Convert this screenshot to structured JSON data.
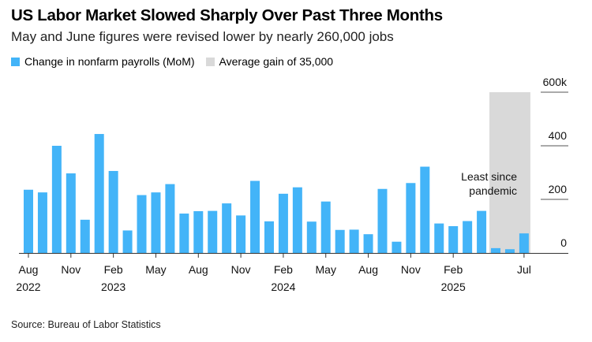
{
  "title": "US Labor Market Slowed Sharply Over Past Three Months",
  "subtitle": "May and June figures were revised lower by nearly 260,000 jobs",
  "source": "Source: Bureau of Labor Statistics",
  "colors": {
    "bar": "#43b4f8",
    "band": "#d9d9d9"
  },
  "chart_data": {
    "type": "bar",
    "title": "US Labor Market Slowed Sharply Over Past Three Months",
    "legend": [
      {
        "label": "Change in nonfarm payrolls (MoM)",
        "color": "#43b4f8"
      },
      {
        "label": "Average gain of 35,000",
        "color": "#d9d9d9"
      }
    ],
    "legend_placement": "top-left",
    "categories": [
      "Aug 2022",
      "Sep 2022",
      "Oct 2022",
      "Nov 2022",
      "Dec 2022",
      "Jan 2023",
      "Feb 2023",
      "Mar 2023",
      "Apr 2023",
      "May 2023",
      "Jun 2023",
      "Jul 2023",
      "Aug 2023",
      "Sep 2023",
      "Oct 2023",
      "Nov 2023",
      "Dec 2023",
      "Jan 2024",
      "Feb 2024",
      "Mar 2024",
      "Apr 2024",
      "May 2024",
      "Jun 2024",
      "Jul 2024",
      "Aug 2024",
      "Sep 2024",
      "Oct 2024",
      "Nov 2024",
      "Dec 2024",
      "Jan 2025",
      "Feb 2025",
      "Mar 2025",
      "Apr 2025",
      "May 2025",
      "Jun 2025",
      "Jul 2025"
    ],
    "values": [
      236,
      226,
      400,
      297,
      124,
      444,
      306,
      84,
      216,
      226,
      257,
      147,
      156,
      157,
      185,
      140,
      269,
      118,
      221,
      245,
      117,
      192,
      86,
      87,
      70,
      239,
      42,
      261,
      322,
      110,
      100,
      119,
      157,
      18,
      14,
      73
    ],
    "units": "thousands",
    "ylim": [
      0,
      600
    ],
    "yticks": [
      "0",
      "200",
      "400",
      "600k"
    ],
    "ytick_values": [
      0,
      200,
      400,
      600
    ],
    "xticks": [
      {
        "index": 0,
        "label": "Aug",
        "year": "2022"
      },
      {
        "index": 3,
        "label": "Nov"
      },
      {
        "index": 6,
        "label": "Feb",
        "year": "2023"
      },
      {
        "index": 9,
        "label": "May"
      },
      {
        "index": 12,
        "label": "Aug"
      },
      {
        "index": 15,
        "label": "Nov"
      },
      {
        "index": 18,
        "label": "Feb",
        "year": "2024"
      },
      {
        "index": 21,
        "label": "May"
      },
      {
        "index": 24,
        "label": "Aug"
      },
      {
        "index": 27,
        "label": "Nov"
      },
      {
        "index": 30,
        "label": "Feb",
        "year": "2025"
      },
      {
        "index": 35,
        "label": "Jul"
      }
    ],
    "shaded_band": {
      "from_index": 33,
      "to_index": 35,
      "label": "Average gain of 35,000"
    },
    "annotation": [
      "Least since",
      "pandemic"
    ],
    "grid": false
  }
}
